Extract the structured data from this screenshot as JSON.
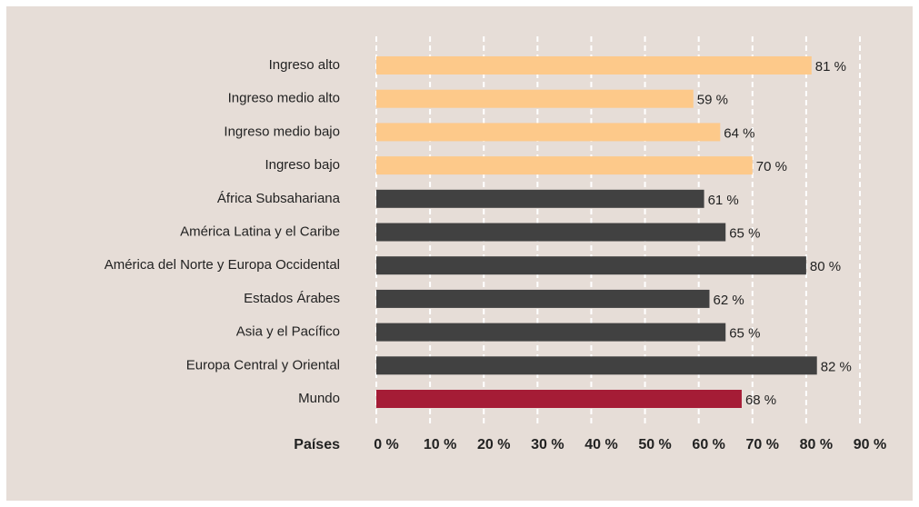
{
  "chart_data": {
    "type": "barh",
    "ylabel": "Países",
    "categories": [
      "Ingreso alto",
      "Ingreso medio alto",
      "Ingreso medio bajo",
      "Ingreso bajo",
      "África Subsahariana",
      "América Latina y el Caribe",
      "América del Norte y Europa Occidental",
      "Estados Árabes",
      "Asia y el Pacífico",
      "Europa Central y Oriental",
      "Mundo"
    ],
    "values": [
      81,
      59,
      64,
      70,
      61,
      65,
      80,
      62,
      65,
      82,
      68
    ],
    "value_labels": [
      "81 %",
      "59 %",
      "64 %",
      "70 %",
      "61 %",
      "65 %",
      "80 %",
      "62 %",
      "65 %",
      "82 %",
      "68 %"
    ],
    "colors": [
      "#fdc98a",
      "#fdc98a",
      "#fdc98a",
      "#fdc98a",
      "#414141",
      "#414141",
      "#414141",
      "#414141",
      "#414141",
      "#414141",
      "#a51c36"
    ],
    "xlim": [
      0,
      90
    ],
    "xticks": [
      {
        "value": 0,
        "label": "0 %"
      },
      {
        "value": 10,
        "label": "10 %"
      },
      {
        "value": 20,
        "label": "20 %"
      },
      {
        "value": 30,
        "label": "30 %"
      },
      {
        "value": 40,
        "label": "40 %"
      },
      {
        "value": 50,
        "label": "50 %"
      },
      {
        "value": 60,
        "label": "60 %"
      },
      {
        "value": 70,
        "label": "70 %"
      },
      {
        "value": 80,
        "label": "80 %"
      },
      {
        "value": 90,
        "label": "90 %"
      }
    ],
    "grid": true
  }
}
